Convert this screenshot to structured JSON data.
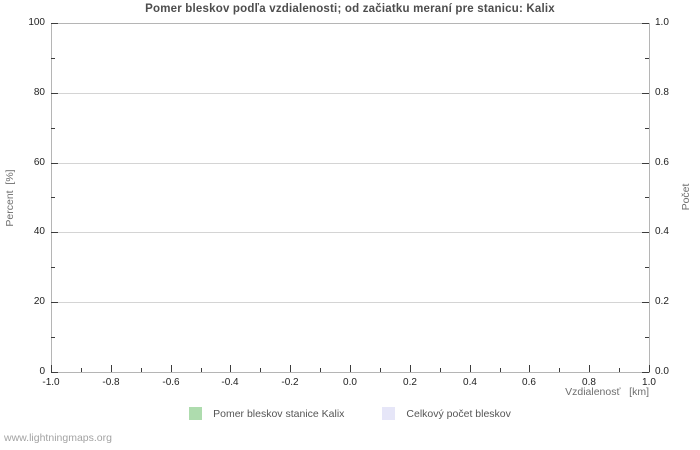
{
  "chart_data": {
    "type": "line",
    "title": "Pomer bleskov podľa vzdialenosti; od začiatku meraní pre stanicu: Kalix",
    "xlabel": "Vzdialenosť   [km]",
    "ylabel_left": "Percent  [%]",
    "ylabel_right": "Počet",
    "xlim": [
      -1.0,
      1.0
    ],
    "ylim_left": [
      0,
      100
    ],
    "ylim_right": [
      0.0,
      1.0
    ],
    "x_ticks": [
      "-1.0",
      "-0.8",
      "-0.6",
      "-0.4",
      "-0.2",
      "0.0",
      "0.2",
      "0.4",
      "0.6",
      "0.8",
      "1.0"
    ],
    "y_ticks_left": [
      "0",
      "20",
      "40",
      "60",
      "80",
      "100"
    ],
    "y_ticks_right": [
      "0.0",
      "0.2",
      "0.4",
      "0.6",
      "0.8",
      "1.0"
    ],
    "grid": true,
    "legend_position": "bottom",
    "series": [
      {
        "name": "Pomer bleskov stanice Kalix",
        "color": "#aedcae",
        "values": []
      },
      {
        "name": "Celkový počet bleskov",
        "color": "#e6e6f8",
        "values": []
      }
    ]
  },
  "footer": {
    "watermark": "www.lightningmaps.org"
  },
  "colors": {
    "grid": "#d4d4d4",
    "frame": "#b5b5b5",
    "tick": "#3c3c3c",
    "title_text": "#4d4d4d",
    "axis_label_text": "#6e6e6e",
    "legend_text": "#555555",
    "watermark_text": "#a3a3a3"
  }
}
